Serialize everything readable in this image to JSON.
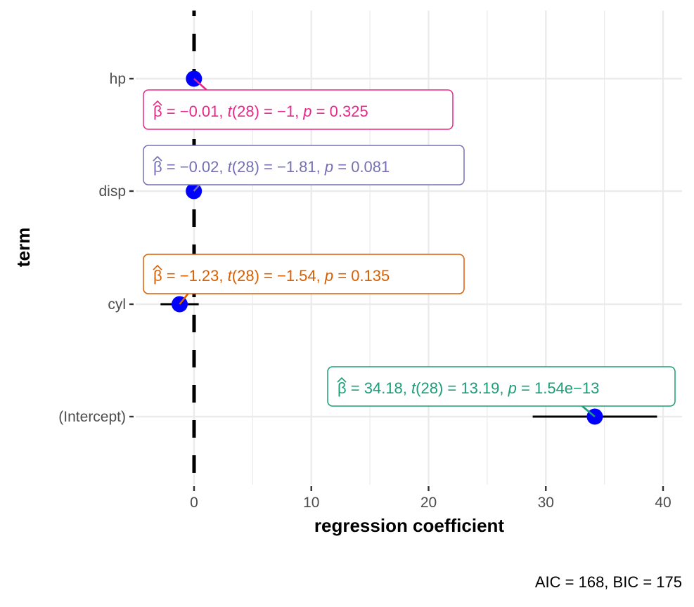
{
  "chart_data": {
    "type": "scatter",
    "subtype": "coefficient-plot",
    "title": "",
    "xlabel": "regression coefficient",
    "ylabel": "term",
    "caption": "AIC = 168, BIC = 175",
    "xlim": [
      -5,
      42
    ],
    "x_ticks": [
      0,
      10,
      20,
      30,
      40
    ],
    "x_tick_labels": [
      "0",
      "10",
      "20",
      "30",
      "40"
    ],
    "x_minor_ticks": [
      5,
      15,
      25,
      35
    ],
    "grid": true,
    "reference_line": {
      "x": 0,
      "style": "dashed",
      "color": "#000000"
    },
    "point_color": "#0000ff",
    "terms": [
      {
        "term": "hp",
        "estimate": -0.01,
        "conf_low": -0.05,
        "conf_high": 0.02,
        "label": {
          "beta": "−0.01",
          "df": "28",
          "t": "−1",
          "p": "0.325"
        },
        "label_color": "#e7298a"
      },
      {
        "term": "disp",
        "estimate": -0.02,
        "conf_low": -0.04,
        "conf_high": 0.0,
        "label": {
          "beta": "−0.02",
          "df": "28",
          "t": "−1.81",
          "p": "0.081"
        },
        "label_color": "#7570b3"
      },
      {
        "term": "cyl",
        "estimate": -1.23,
        "conf_low": -2.86,
        "conf_high": 0.4,
        "label": {
          "beta": "−1.23",
          "df": "28",
          "t": "−1.54",
          "p": "0.135"
        },
        "label_color": "#d95f02"
      },
      {
        "term": "(Intercept)",
        "estimate": 34.18,
        "conf_low": 28.88,
        "conf_high": 39.49,
        "label": {
          "beta": "34.18",
          "df": "28",
          "t": "13.19",
          "p": "1.54e−13"
        },
        "label_color": "#1b9e77"
      }
    ]
  }
}
